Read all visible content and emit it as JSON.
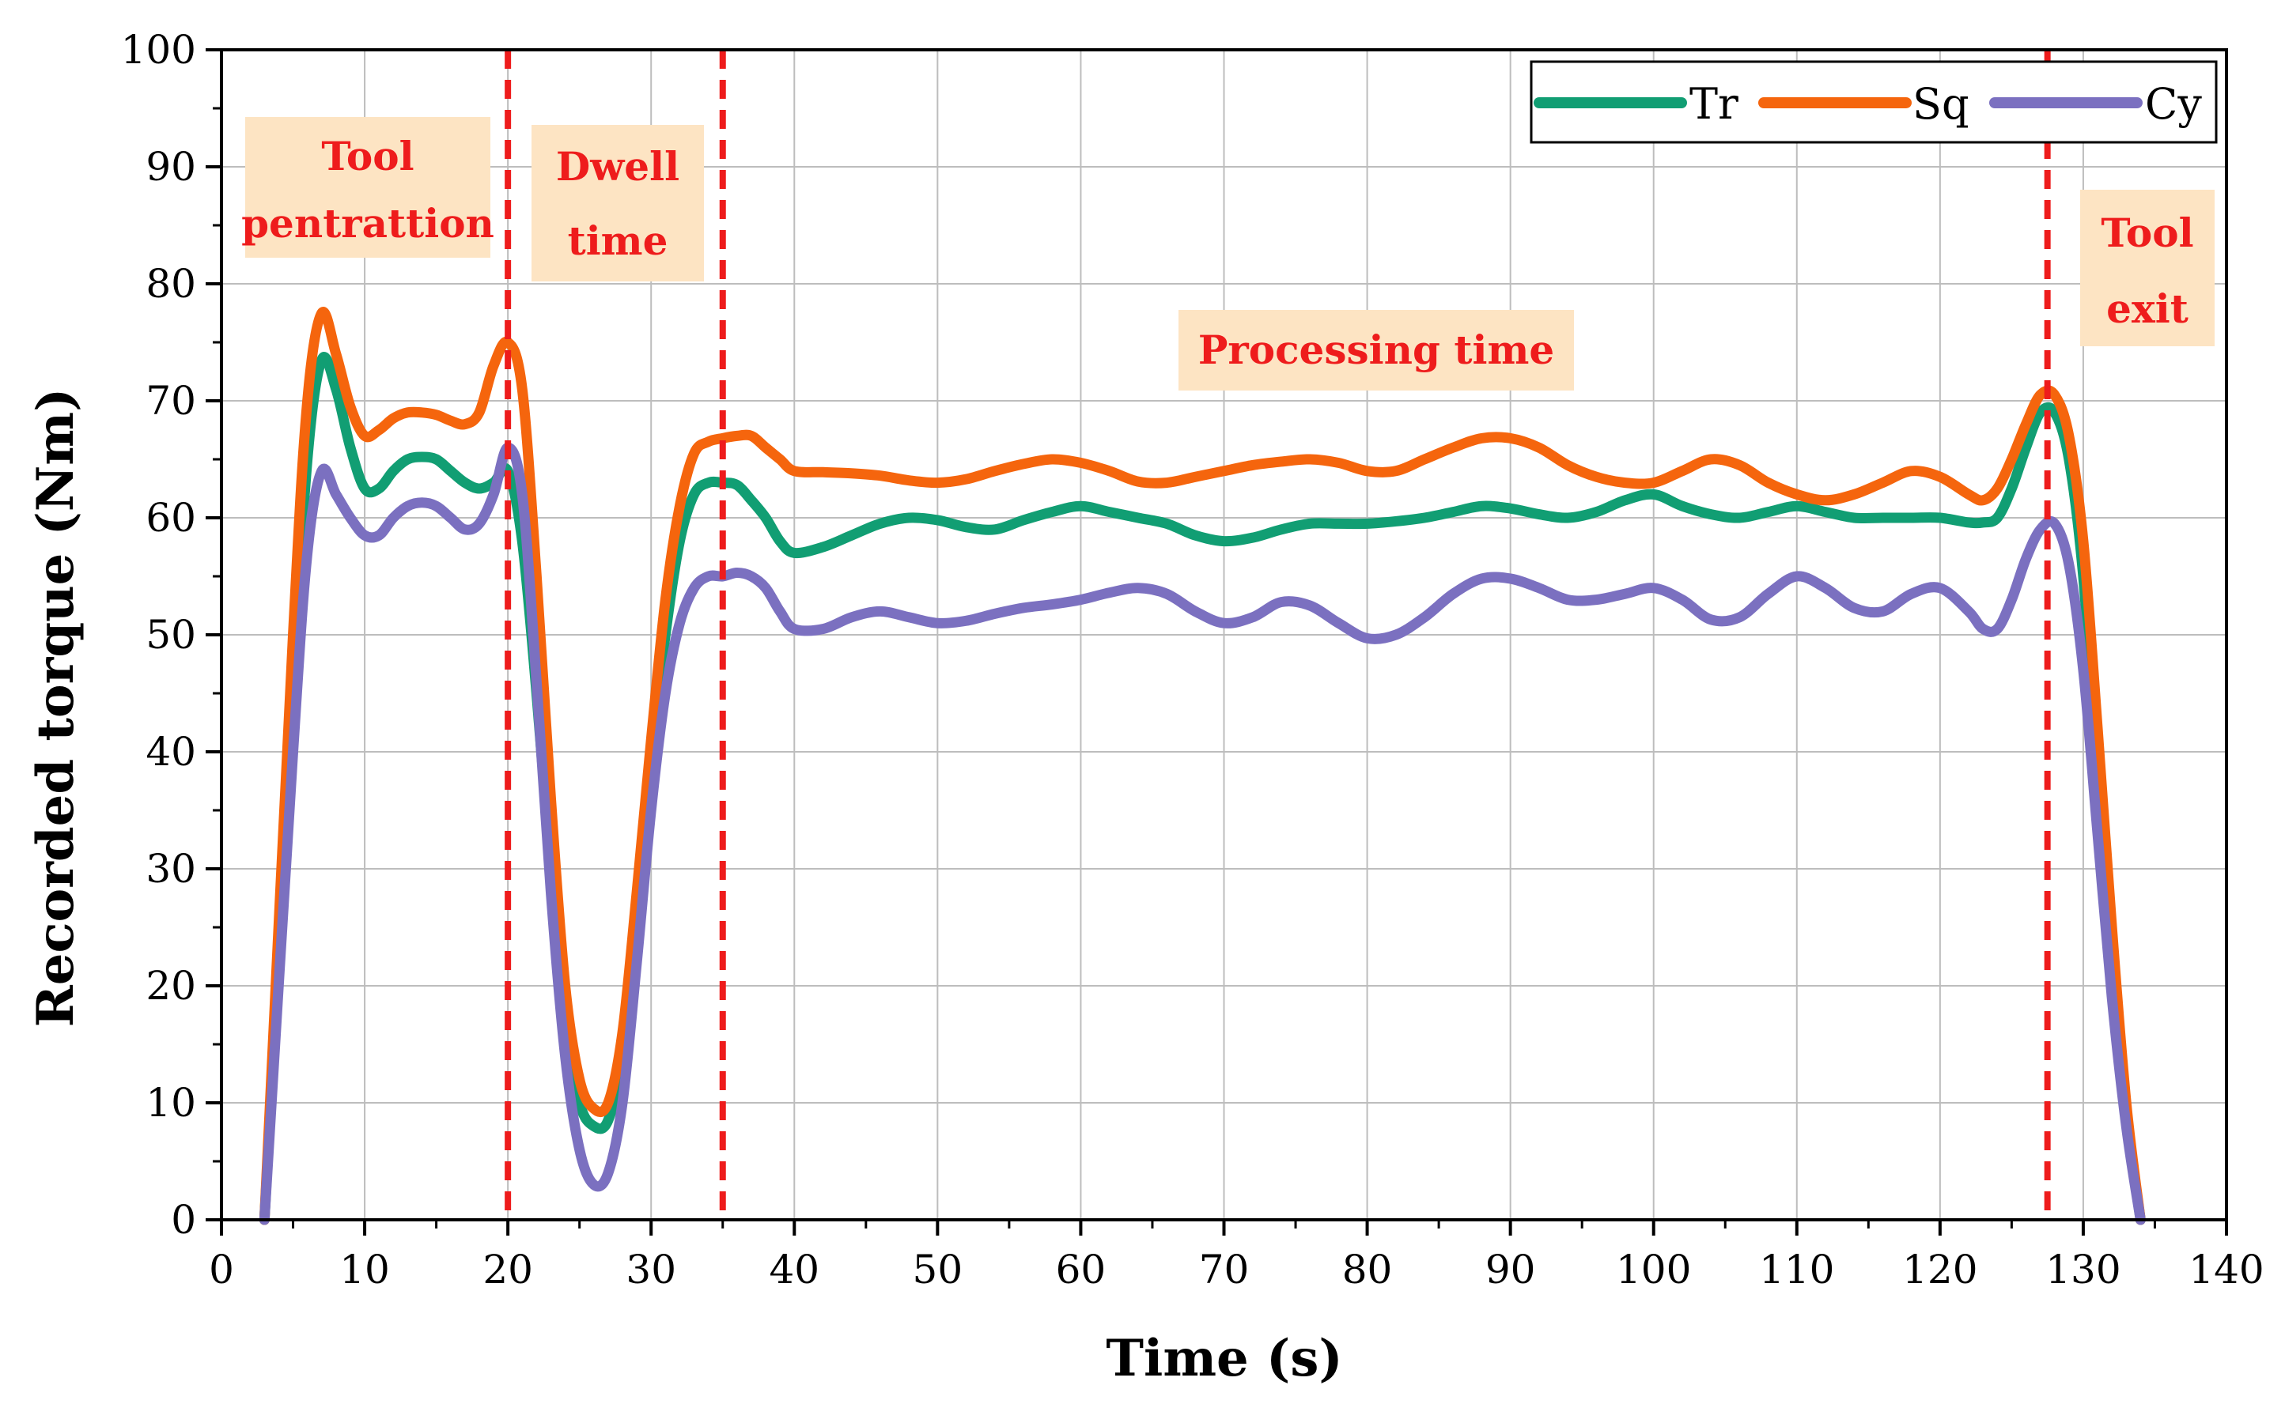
{
  "chart_data": {
    "type": "line",
    "title": "",
    "xlabel": "Time (s)",
    "ylabel": "Recorded torque (Nm)",
    "xlim": [
      0,
      140
    ],
    "ylim": [
      0,
      100
    ],
    "xticks": [
      0,
      10,
      20,
      30,
      40,
      50,
      60,
      70,
      80,
      90,
      100,
      110,
      120,
      130,
      140
    ],
    "yticks": [
      0,
      10,
      20,
      30,
      40,
      50,
      60,
      70,
      80,
      90,
      100
    ],
    "grid": true,
    "legend_position": "top-right",
    "series": [
      {
        "name": "Tr",
        "color": "#119e73",
        "x": [
          3,
          5,
          6,
          7,
          8,
          9,
          10,
          11,
          12,
          13,
          14,
          15,
          16,
          17,
          18,
          19,
          20,
          21,
          22,
          23,
          24,
          25,
          26,
          27,
          28,
          29,
          30,
          31,
          32,
          33,
          34,
          35,
          36,
          37,
          38,
          39,
          40,
          42,
          44,
          46,
          48,
          50,
          52,
          54,
          56,
          58,
          60,
          62,
          64,
          66,
          68,
          70,
          72,
          74,
          76,
          78,
          80,
          82,
          84,
          86,
          88,
          90,
          92,
          94,
          96,
          98,
          100,
          102,
          104,
          106,
          108,
          110,
          112,
          114,
          116,
          118,
          120,
          122,
          123,
          124,
          125,
          126,
          127,
          128,
          129,
          130,
          131,
          132,
          133,
          134
        ],
        "values": [
          0,
          45,
          65,
          73.5,
          71,
          66,
          62.5,
          62.5,
          64,
          65,
          65.2,
          65,
          64,
          63,
          62.5,
          63,
          64,
          58,
          45,
          30,
          17,
          10,
          8,
          8.5,
          14,
          26,
          39,
          50,
          58,
          62,
          63,
          63,
          62.8,
          61.5,
          60,
          58,
          57,
          57.5,
          58.5,
          59.5,
          60,
          59.8,
          59.2,
          59,
          59.8,
          60.5,
          61,
          60.5,
          60,
          59.5,
          58.5,
          58,
          58.3,
          59,
          59.5,
          59.5,
          59.5,
          59.7,
          60,
          60.5,
          61,
          60.8,
          60.3,
          60,
          60.5,
          61.5,
          62,
          61,
          60.3,
          60,
          60.5,
          61,
          60.5,
          60,
          60,
          60,
          60,
          59.6,
          59.6,
          60,
          62.5,
          66,
          69,
          69,
          65,
          55,
          38,
          22,
          9,
          0
        ]
      },
      {
        "name": "Sq",
        "color": "#f5650d",
        "x": [
          3,
          5,
          6,
          7,
          8,
          9,
          10,
          11,
          12,
          13,
          14,
          15,
          16,
          17,
          18,
          19,
          20,
          21,
          22,
          23,
          24,
          25,
          26,
          27,
          28,
          29,
          30,
          31,
          32,
          33,
          34,
          35,
          36,
          37,
          38,
          39,
          40,
          42,
          44,
          46,
          48,
          50,
          52,
          54,
          56,
          58,
          60,
          62,
          64,
          66,
          68,
          70,
          72,
          74,
          76,
          78,
          80,
          82,
          84,
          86,
          88,
          90,
          92,
          94,
          96,
          98,
          100,
          102,
          104,
          106,
          108,
          110,
          112,
          114,
          116,
          118,
          120,
          122,
          123,
          124,
          125,
          126,
          127,
          128,
          129,
          130,
          131,
          132,
          133,
          134
        ],
        "values": [
          0,
          50,
          70,
          77.5,
          74,
          69.5,
          67,
          67.5,
          68.5,
          69,
          69,
          68.8,
          68.3,
          68,
          69,
          73,
          75,
          71,
          55,
          36,
          20,
          12,
          9.5,
          10,
          16,
          28,
          41,
          53,
          61,
          65.5,
          66.5,
          66.8,
          67,
          67,
          66,
          65,
          64,
          63.9,
          63.8,
          63.6,
          63.2,
          63,
          63.3,
          64,
          64.6,
          65,
          64.7,
          64,
          63.1,
          63,
          63.5,
          64,
          64.5,
          64.8,
          65,
          64.7,
          64,
          64,
          65,
          66,
          66.8,
          66.8,
          66,
          64.5,
          63.5,
          63,
          63,
          64,
          65,
          64.5,
          63,
          62,
          61.5,
          62,
          63,
          64,
          63.5,
          62,
          61.5,
          62.5,
          65,
          68,
          70.5,
          70.5,
          67,
          58,
          42,
          25,
          10,
          0
        ]
      },
      {
        "name": "Cy",
        "color": "#7b70c0",
        "x": [
          3,
          5,
          6,
          7,
          8,
          9,
          10,
          11,
          12,
          13,
          14,
          15,
          16,
          17,
          18,
          19,
          20,
          21,
          22,
          23,
          24,
          25,
          26,
          27,
          28,
          29,
          30,
          31,
          32,
          33,
          34,
          35,
          36,
          37,
          38,
          39,
          40,
          42,
          44,
          46,
          48,
          50,
          52,
          54,
          56,
          58,
          60,
          62,
          64,
          66,
          68,
          70,
          72,
          74,
          76,
          78,
          80,
          82,
          84,
          86,
          88,
          90,
          92,
          94,
          96,
          98,
          100,
          102,
          104,
          106,
          108,
          110,
          112,
          114,
          116,
          118,
          120,
          122,
          123,
          124,
          125,
          126,
          127,
          128,
          129,
          130,
          131,
          132,
          133,
          134
        ],
        "values": [
          0,
          40,
          57,
          64,
          62,
          60,
          58.5,
          58.5,
          60,
          61,
          61.3,
          61,
          60,
          59,
          59.5,
          62,
          66,
          62,
          46,
          28,
          14,
          6,
          3,
          4,
          10,
          22,
          35,
          45,
          51,
          54,
          55,
          55,
          55.3,
          55,
          54,
          52,
          50.5,
          50.5,
          51.5,
          52,
          51.5,
          51,
          51.2,
          51.8,
          52.3,
          52.6,
          53,
          53.6,
          54,
          53.5,
          52,
          51,
          51.5,
          52.8,
          52.5,
          51,
          49.7,
          50,
          51.5,
          53.5,
          54.8,
          54.8,
          54,
          53,
          53,
          53.5,
          54,
          53,
          51.3,
          51.5,
          53.5,
          55,
          54,
          52.3,
          52,
          53.5,
          54,
          52,
          50.5,
          50.5,
          53,
          56.5,
          59,
          59.5,
          56,
          47,
          33,
          19,
          8,
          0
        ]
      }
    ],
    "vlines": [
      20,
      35,
      127.5
    ],
    "annotations": [
      "Tool pentrattion",
      "Dwell time",
      "Processing time",
      "Tool exit"
    ]
  },
  "annotations": {
    "tool_penetration": [
      "Tool",
      "pentrattion"
    ],
    "dwell_time": [
      "Dwell",
      "time"
    ],
    "processing_time": "Processing time",
    "tool_exit": [
      "Tool",
      "exit"
    ]
  },
  "style": {
    "vline_color": "#ee1c1c",
    "annotation_fill": "#fde4c3",
    "grid_color": "#bdbdbd"
  }
}
